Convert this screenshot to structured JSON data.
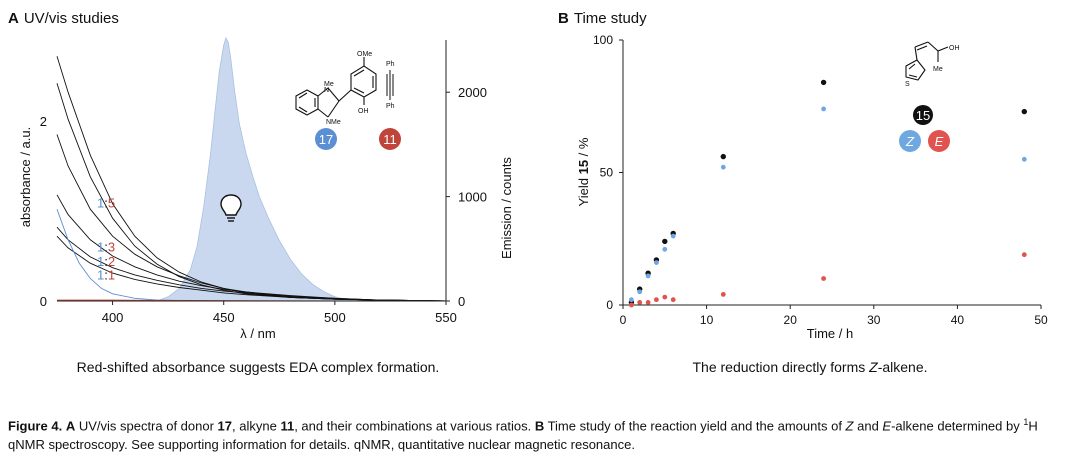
{
  "panelA": {
    "label": "A",
    "title": "UV/vis studies",
    "subtitle": "Red-shifted absorbance suggests EDA complex formation.",
    "compound_labels": {
      "donor": "17",
      "alkyne": "11"
    },
    "colors": {
      "donor": "#5b8fd4",
      "alkyne": "#c0443a",
      "emission_fill": "#c9d8ee",
      "emission_line": "#a9c0e2",
      "black_series": "#111111"
    }
  },
  "panelB": {
    "label": "B",
    "title": "Time study",
    "subtitle_before": "The reduction directly forms ",
    "subtitle_italic": "Z",
    "subtitle_after": "-alkene.",
    "product_label": "15",
    "z_label": "Z",
    "e_label": "E",
    "colors": {
      "total": "#111111",
      "z": "#6fa8e0",
      "e": "#e0534e"
    }
  },
  "caption": {
    "figure_label": "Figure 4.",
    "panel_a": "A",
    "text_1": " UV/vis spectra of donor ",
    "donor": "17",
    "text_2": ", alkyne ",
    "alkyne": "11",
    "text_3": ", and their combinations at various ratios. ",
    "panel_b": "B",
    "text_4": " Time study of the reaction yield and the amounts of ",
    "z": "Z",
    "text_5": " and ",
    "e": "E",
    "text_6": "-alkene determined by ",
    "sup": "1",
    "text_7": "H qNMR spectroscopy. See supporting information for details. qNMR, quantitative nuclear magnetic resonance."
  },
  "chart_data": [
    {
      "type": "line",
      "title": "UV/vis studies",
      "xlabel": "λ / nm",
      "ylabel": "absorbance / a.u.",
      "y2label": "Emission / counts",
      "xlim": [
        375,
        550
      ],
      "ylim": [
        0,
        2.9
      ],
      "y2lim": [
        0,
        2500
      ],
      "xticks": [
        400,
        450,
        500,
        550
      ],
      "yticks": [
        0,
        2
      ],
      "y2ticks": [
        0,
        1000,
        2000
      ],
      "ratio_labels": [
        {
          "left": "1",
          "sep": ":",
          "right": "5",
          "x": 393,
          "y": 1.04
        },
        {
          "left": "1",
          "sep": ":",
          "right": "3",
          "x": 393,
          "y": 0.55
        },
        {
          "left": "1",
          "sep": ":",
          "right": "2",
          "x": 393,
          "y": 0.39
        },
        {
          "left": "1",
          "sep": ":",
          "right": "1",
          "x": 393,
          "y": 0.24
        }
      ],
      "series": [
        {
          "color": "#111111",
          "x": [
            375,
            380,
            390,
            400,
            410,
            420,
            430,
            440,
            450,
            460,
            480,
            500,
            520,
            550
          ],
          "values": [
            2.72,
            2.32,
            1.62,
            1.08,
            0.72,
            0.48,
            0.32,
            0.21,
            0.14,
            0.09,
            0.04,
            0.02,
            0.01,
            0.0
          ]
        },
        {
          "color": "#111111",
          "x": [
            375,
            380,
            390,
            400,
            410,
            420,
            430,
            440,
            450,
            460,
            480,
            500,
            520,
            550
          ],
          "values": [
            2.42,
            2.02,
            1.38,
            0.92,
            0.61,
            0.41,
            0.27,
            0.18,
            0.12,
            0.08,
            0.04,
            0.02,
            0.01,
            0.0
          ]
        },
        {
          "color": "#111111",
          "x": [
            375,
            380,
            390,
            400,
            410,
            420,
            430,
            440,
            450,
            460,
            480,
            500,
            520,
            550
          ],
          "values": [
            1.85,
            1.5,
            1.02,
            0.72,
            0.52,
            0.38,
            0.28,
            0.2,
            0.14,
            0.1,
            0.05,
            0.02,
            0.01,
            0.0
          ]
        },
        {
          "color": "#111111",
          "x": [
            375,
            380,
            390,
            400,
            410,
            420,
            430,
            440,
            450,
            460,
            480,
            500,
            520,
            550
          ],
          "values": [
            1.18,
            0.96,
            0.68,
            0.5,
            0.38,
            0.29,
            0.22,
            0.17,
            0.13,
            0.1,
            0.06,
            0.03,
            0.01,
            0.0
          ]
        },
        {
          "color": "#111111",
          "x": [
            375,
            380,
            390,
            400,
            410,
            420,
            430,
            440,
            450,
            460,
            480,
            500,
            520,
            550
          ],
          "values": [
            0.82,
            0.68,
            0.49,
            0.37,
            0.29,
            0.23,
            0.18,
            0.14,
            0.11,
            0.09,
            0.05,
            0.03,
            0.01,
            0.0
          ]
        },
        {
          "color": "#111111",
          "x": [
            375,
            380,
            390,
            400,
            410,
            420,
            430,
            440,
            450,
            460,
            480,
            500,
            520,
            550
          ],
          "values": [
            0.72,
            0.59,
            0.42,
            0.31,
            0.24,
            0.19,
            0.15,
            0.12,
            0.09,
            0.07,
            0.04,
            0.02,
            0.01,
            0.0
          ]
        },
        {
          "color": "#5b8fd4",
          "x": [
            375,
            380,
            385,
            390,
            395,
            400,
            410,
            420,
            440,
            460,
            550
          ],
          "values": [
            1.02,
            0.68,
            0.42,
            0.25,
            0.14,
            0.08,
            0.03,
            0.01,
            0.0,
            0.0,
            0.0
          ]
        },
        {
          "color": "#c0443a",
          "x": [
            375,
            400,
            450,
            500,
            550
          ],
          "values": [
            0.01,
            0.01,
            0.005,
            0.0,
            0.0
          ]
        }
      ],
      "emission": {
        "axis": "y2",
        "x": [
          420,
          425,
          430,
          435,
          438,
          441,
          444,
          446,
          448,
          450,
          451,
          452,
          453,
          455,
          457,
          460,
          463,
          466,
          470,
          475,
          480,
          485,
          490,
          495,
          500,
          505,
          510
        ],
        "values": [
          0,
          40,
          120,
          300,
          520,
          900,
          1400,
          1800,
          2200,
          2450,
          2520,
          2480,
          2350,
          2000,
          1700,
          1420,
          1200,
          1000,
          800,
          580,
          400,
          260,
          160,
          90,
          40,
          15,
          0
        ]
      }
    },
    {
      "type": "scatter",
      "title": "Time study",
      "xlabel": "Time / h",
      "ylabel_before": "Yield ",
      "ylabel_bold": "15",
      "ylabel_after": " / %",
      "xlim": [
        0,
        50
      ],
      "ylim": [
        0,
        100
      ],
      "xticks": [
        0,
        10,
        20,
        30,
        40,
        50
      ],
      "yticks": [
        0,
        50,
        100
      ],
      "series": [
        {
          "key": "total",
          "color": "#111111",
          "x": [
            1,
            2,
            3,
            4,
            5,
            6,
            12,
            24,
            48
          ],
          "values": [
            1,
            6,
            12,
            17,
            24,
            27,
            56,
            84,
            73
          ]
        },
        {
          "key": "z",
          "color": "#6fa8e0",
          "x": [
            1,
            2,
            3,
            4,
            5,
            6,
            12,
            24,
            48
          ],
          "values": [
            2,
            5,
            11,
            16,
            21,
            26,
            52,
            74,
            55
          ]
        },
        {
          "key": "e",
          "color": "#e0534e",
          "x": [
            1,
            2,
            3,
            4,
            5,
            6,
            12,
            24,
            48
          ],
          "values": [
            0,
            1,
            1,
            2,
            3,
            2,
            4,
            10,
            19
          ]
        }
      ]
    }
  ]
}
